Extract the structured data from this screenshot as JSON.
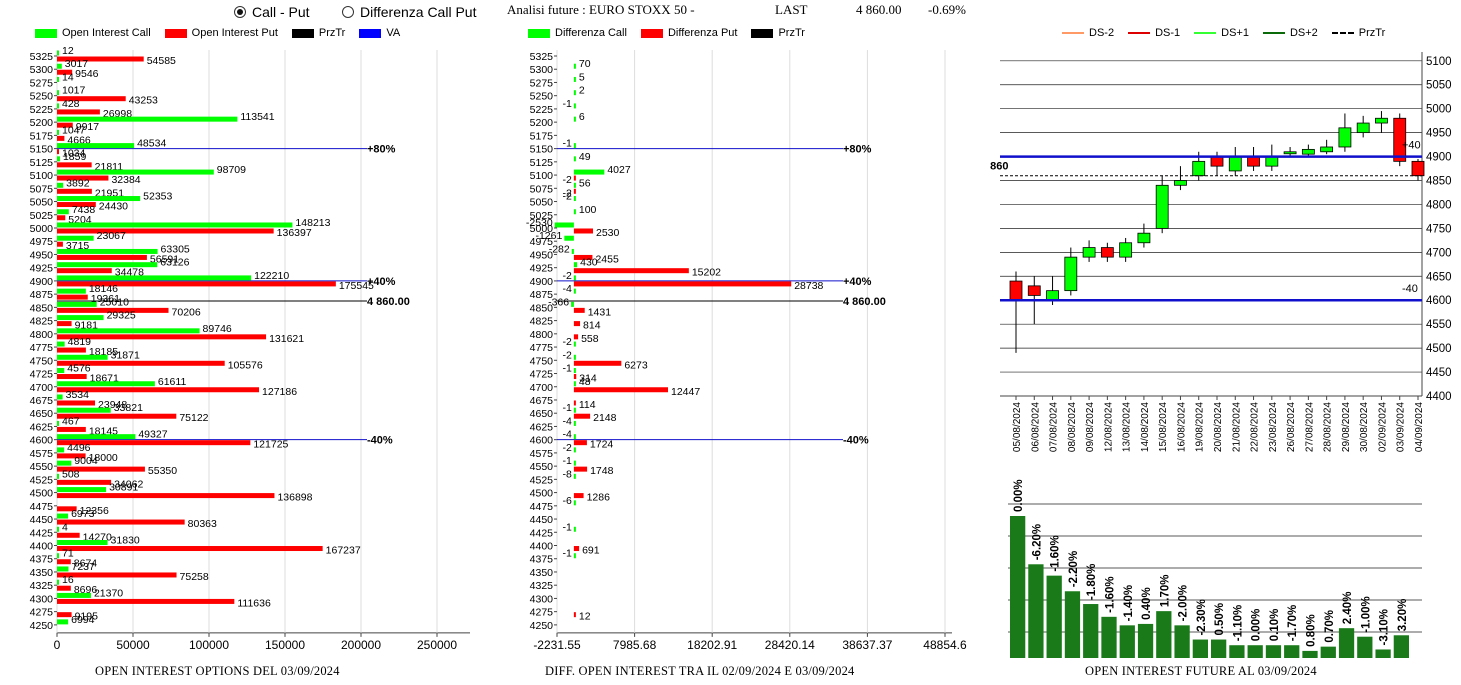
{
  "header": {
    "radio_call_put": "Call - Put",
    "radio_diff": "Differenza Call Put",
    "title": "Analisi future : EURO STOXX 50 -",
    "last_label": "LAST",
    "last_value": "4 860.00",
    "change": "-0.69%"
  },
  "colors": {
    "call": "#00ff00",
    "put": "#ff0000",
    "przTr": "#000000",
    "va": "#0000ff",
    "darkgreen": "#1a7a1a",
    "blueline": "#1010cc"
  },
  "panel1": {
    "legend": [
      "Open Interest Call",
      "Open Interest Put",
      "PrzTr",
      "VA"
    ],
    "caption": "OPEN INTEREST OPTIONS DEL 03/09/2024"
  },
  "panel2": {
    "legend": [
      "Differenza Call",
      "Differenza Put",
      "PrzTr"
    ],
    "caption": "DIFF. OPEN INTEREST TRA IL 02/09/2024 E 03/09/2024"
  },
  "panel3": {
    "legend": [
      "DS-2",
      "DS-1",
      "DS+1",
      "DS+2",
      "PrzTr"
    ],
    "caption": "OPEN INTEREST FUTURE AL 03/09/2024"
  },
  "chart_data": [
    {
      "type": "bar",
      "orientation": "horizontal",
      "strikes": [
        5325,
        5300,
        5275,
        5250,
        5225,
        5200,
        5175,
        5150,
        5125,
        5100,
        5075,
        5050,
        5025,
        5000,
        4975,
        4950,
        4925,
        4900,
        4875,
        4850,
        4825,
        4800,
        4775,
        4750,
        4725,
        4700,
        4675,
        4650,
        4625,
        4600,
        4575,
        4550,
        4525,
        4500,
        4475,
        4450,
        4425,
        4400,
        4375,
        4350,
        4325,
        4300,
        4275,
        4250
      ],
      "series": [
        {
          "name": "Open Interest Call",
          "values": [
            12,
            3017,
            14,
            1017,
            428,
            113541,
            1047,
            48534,
            1859,
            98709,
            3892,
            52353,
            7438,
            148213,
            23067,
            63305,
            63126,
            122210,
            18146,
            25010,
            29325,
            89746,
            4819,
            31871,
            4576,
            61611,
            3534,
            33821,
            467,
            49327,
            4496,
            9004,
            508,
            30891,
            null,
            6973,
            4,
            31830,
            71,
            7237,
            16,
            21370,
            null,
            6994
          ]
        },
        {
          "name": "Open Interest Put",
          "values": [
            54585,
            9546,
            null,
            43253,
            26998,
            9917,
            4666,
            1034,
            21811,
            32384,
            21951,
            24430,
            5204,
            136397,
            3715,
            56591,
            34478,
            175545,
            19361,
            70206,
            9181,
            131621,
            18185,
            105576,
            18671,
            127186,
            23948,
            75122,
            18145,
            121725,
            18000,
            55350,
            34062,
            136898,
            12356,
            80363,
            14270,
            167237,
            8674,
            75258,
            8696,
            111636,
            9195,
            null
          ]
        }
      ],
      "xticks": [
        "0",
        "50000",
        "100000",
        "150000",
        "200000",
        "250000"
      ],
      "xlim": [
        0,
        260000
      ],
      "annotations": [
        {
          "strike": 5150,
          "label": "+80%"
        },
        {
          "strike": 4900,
          "label": "+40%"
        },
        {
          "strike": 4862,
          "label": "4 860.00"
        },
        {
          "strike": 4600,
          "label": "-40%"
        }
      ]
    },
    {
      "type": "bar",
      "orientation": "horizontal",
      "strikes": [
        5325,
        5300,
        5275,
        5250,
        5225,
        5200,
        5175,
        5150,
        5125,
        5100,
        5075,
        5050,
        5025,
        5000,
        4975,
        4950,
        4925,
        4900,
        4875,
        4850,
        4825,
        4800,
        4775,
        4750,
        4725,
        4700,
        4675,
        4650,
        4625,
        4600,
        4575,
        4550,
        4525,
        4500,
        4475,
        4450,
        4425,
        4400,
        4375,
        4350,
        4325,
        4300,
        4275,
        4250
      ],
      "series": [
        {
          "name": "Differenza Call",
          "values": [
            null,
            70,
            5,
            2,
            -1,
            6,
            null,
            -1,
            49,
            4027,
            56,
            -2,
            100,
            -2530,
            -1261,
            -282,
            430,
            -2,
            -4,
            -366,
            null,
            null,
            -2,
            -2,
            -1,
            48,
            null,
            -1,
            -4,
            -4,
            -2,
            -1,
            -8,
            null,
            -6,
            null,
            -1,
            null,
            -1,
            null,
            null,
            null,
            null,
            null
          ]
        },
        {
          "name": "Differenza Put",
          "values": [
            null,
            null,
            null,
            null,
            null,
            null,
            null,
            null,
            null,
            -2,
            -2,
            null,
            null,
            2530,
            null,
            2455,
            15202,
            28738,
            null,
            1431,
            814,
            558,
            null,
            6273,
            314,
            12447,
            114,
            2148,
            null,
            1724,
            null,
            1748,
            null,
            1286,
            null,
            null,
            null,
            691,
            null,
            null,
            null,
            null,
            12,
            null
          ]
        }
      ],
      "xticks": [
        "-2231.55",
        "7985.68",
        "18202.91",
        "28420.14",
        "38637.37",
        "48854.6"
      ],
      "xlim": [
        -2231.55,
        50000
      ],
      "annotations": [
        {
          "strike": 5150,
          "label": "+80%"
        },
        {
          "strike": 4900,
          "label": "+40%"
        },
        {
          "strike": 4862,
          "label": "4 860.00"
        },
        {
          "strike": 4600,
          "label": "-40%"
        }
      ]
    },
    {
      "type": "candlestick",
      "dates": [
        "05/08/2024",
        "06/08/2024",
        "07/08/2024",
        "08/08/2024",
        "09/08/2024",
        "12/08/2024",
        "13/08/2024",
        "14/08/2024",
        "15/08/2024",
        "16/08/2024",
        "19/08/2024",
        "20/08/2024",
        "21/08/2024",
        "22/08/2024",
        "23/08/2024",
        "26/08/2024",
        "27/08/2024",
        "28/08/2024",
        "29/08/2024",
        "30/08/2024",
        "02/09/2024",
        "03/09/2024",
        "04/09/2024"
      ],
      "open": [
        4640,
        4630,
        4600,
        4620,
        4690,
        4710,
        4690,
        4720,
        4750,
        4840,
        4860,
        4900,
        4870,
        4900,
        4880,
        4910,
        4905,
        4910,
        4920,
        4950,
        4970,
        4980,
        4890
      ],
      "close": [
        4600,
        4610,
        4620,
        4690,
        4710,
        4690,
        4720,
        4740,
        4840,
        4850,
        4890,
        4880,
        4900,
        4880,
        4900,
        4910,
        4915,
        4920,
        4960,
        4970,
        4980,
        4890,
        4860
      ],
      "high": [
        4660,
        4650,
        4650,
        4710,
        4725,
        4720,
        4730,
        4760,
        4860,
        4880,
        4910,
        4910,
        4920,
        4920,
        4925,
        4920,
        4925,
        4935,
        4990,
        4985,
        4995,
        4990,
        4895
      ],
      "low": [
        4490,
        4550,
        4590,
        4610,
        4680,
        4680,
        4680,
        4710,
        4740,
        4830,
        4850,
        4860,
        4860,
        4870,
        4870,
        4900,
        4900,
        4905,
        4910,
        4940,
        4950,
        4880,
        4850
      ],
      "yticks": [
        "5100",
        "5050",
        "5000",
        "4950",
        "4900",
        "4850",
        "4800",
        "4750",
        "4700",
        "4650",
        "4600",
        "4550",
        "4500",
        "4450",
        "4400"
      ],
      "ylim": [
        4400,
        5110
      ],
      "lines": [
        {
          "label": "+40",
          "value": 4900
        },
        {
          "label": "-40",
          "value": 4600
        },
        {
          "label": "4860",
          "value": 4860
        }
      ]
    },
    {
      "type": "bar",
      "labels": [
        "0.00%",
        "-6.20%",
        "-1.60%",
        "-2.20%",
        "-1.80%",
        "-1.60%",
        "-1.40%",
        "0.40%",
        "1.70%",
        "-2.00%",
        "-2.30%",
        "0.50%",
        "-1.10%",
        "0.00%",
        "0.10%",
        "-1.70%",
        "0.80%",
        "0.70%",
        "2.40%",
        "-1.00%",
        "-3.10%",
        "3.20%"
      ],
      "values": [
        100,
        66,
        58,
        47,
        38,
        29,
        23,
        24,
        33,
        23,
        13,
        13,
        9,
        9,
        9,
        9,
        5,
        8,
        21,
        15,
        6,
        16
      ]
    }
  ]
}
